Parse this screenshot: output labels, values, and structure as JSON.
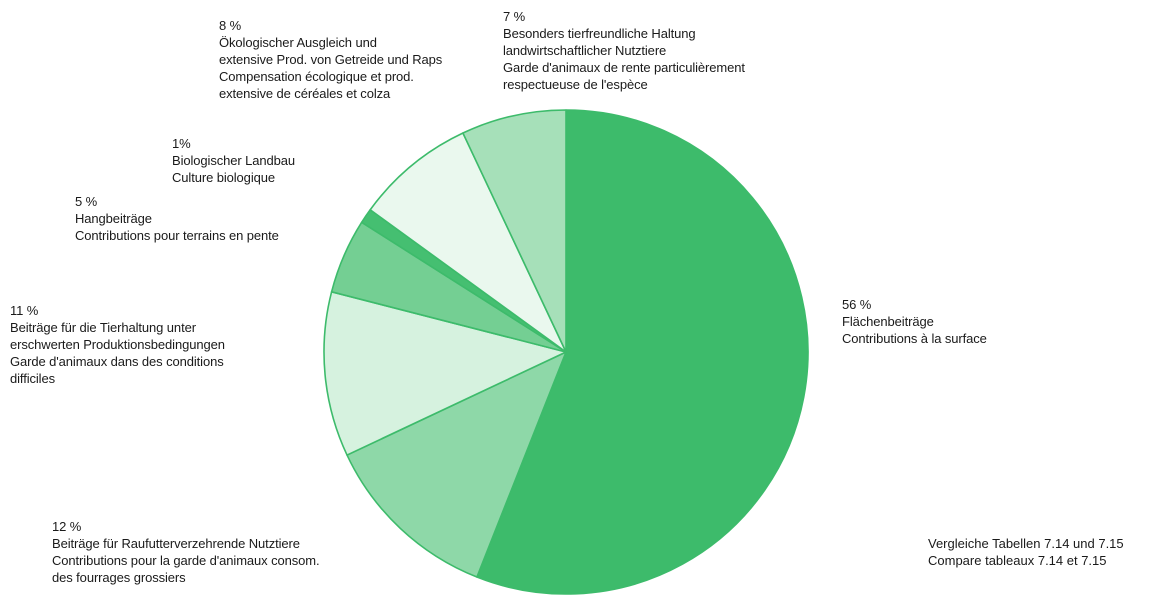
{
  "chart_data": {
    "type": "pie",
    "title": "",
    "slices": [
      {
        "value": 56,
        "label": "56 %",
        "lines": [
          "Flächenbeiträge",
          "Contributions à la surface"
        ],
        "color": "#3dbb6b"
      },
      {
        "value": 12,
        "label": "12 %",
        "lines": [
          "Beiträge für Raufutterverzehrende Nutztiere",
          "Contributions pour la garde d'animaux consom.",
          "des fourrages grossiers"
        ],
        "color": "#8ed8a8"
      },
      {
        "value": 11,
        "label": "11 %",
        "lines": [
          "Beiträge für die Tierhaltung unter",
          "erschwerten Produktionsbedingungen",
          "Garde d'animaux dans des conditions",
          "difficiles"
        ],
        "color": "#d6f2df"
      },
      {
        "value": 5,
        "label": "5 %",
        "lines": [
          "Hangbeiträge",
          "Contributions pour terrains en pente"
        ],
        "color": "#74cf93"
      },
      {
        "value": 1,
        "label": "1%",
        "lines": [
          "Biologischer Landbau",
          "Culture biologique"
        ],
        "color": "#45bf71"
      },
      {
        "value": 8,
        "label": "8 %",
        "lines": [
          "Ökologischer Ausgleich und",
          "extensive Prod. von Getreide und Raps",
          "Compensation écologique et prod.",
          "extensive de céréales et colza"
        ],
        "color": "#eaf8ee"
      },
      {
        "value": 7,
        "label": "7 %",
        "lines": [
          "Besonders tierfreundliche Haltung",
          "landwirtschaftlicher Nutztiere",
          "Garde d'animaux de rente particulièrement",
          "respectueuse de l'espèce"
        ],
        "color": "#a6e0b9"
      }
    ]
  },
  "note": {
    "lines": [
      "Vergleiche Tabellen 7.14 und 7.15",
      "Compare tableaux 7.14 et 7.15"
    ]
  }
}
